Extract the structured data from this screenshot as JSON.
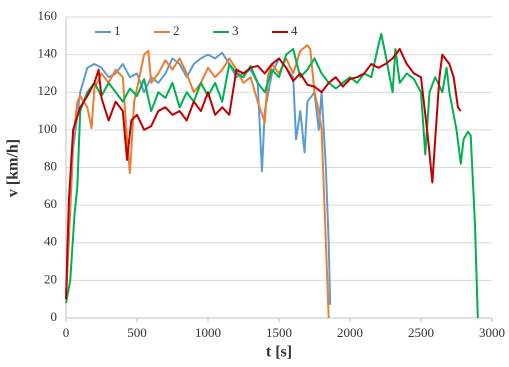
{
  "chart_data": {
    "type": "line",
    "x_label": "t [s]",
    "y_label": "v [km/h]",
    "xlim": [
      0,
      3000
    ],
    "xticks": [
      0,
      500,
      1000,
      1500,
      2000,
      2500,
      3000
    ],
    "ylim": [
      0,
      160
    ],
    "yticks": [
      0,
      20,
      40,
      60,
      80,
      100,
      120,
      140,
      160
    ],
    "grid": true,
    "legend": "top",
    "series": [
      {
        "name": "1",
        "color": "#5b9bd5",
        "x": [
          0,
          50,
          100,
          150,
          200,
          250,
          300,
          350,
          400,
          450,
          500,
          550,
          600,
          650,
          700,
          750,
          800,
          850,
          900,
          950,
          1000,
          1050,
          1100,
          1150,
          1200,
          1250,
          1300,
          1350,
          1380,
          1400,
          1450,
          1500,
          1550,
          1600,
          1620,
          1650,
          1680,
          1700,
          1750,
          1780,
          1800,
          1830,
          1850,
          1860
        ],
        "values": [
          10,
          90,
          120,
          133,
          135,
          133,
          128,
          130,
          135,
          128,
          130,
          120,
          128,
          125,
          130,
          138,
          135,
          128,
          135,
          138,
          140,
          138,
          141,
          135,
          128,
          130,
          132,
          125,
          78,
          110,
          130,
          138,
          133,
          128,
          95,
          110,
          88,
          115,
          120,
          100,
          120,
          80,
          40,
          7
        ]
      },
      {
        "name": "2",
        "color": "#ed7d31",
        "x": [
          0,
          50,
          80,
          100,
          150,
          180,
          200,
          250,
          300,
          350,
          400,
          430,
          450,
          480,
          500,
          550,
          580,
          600,
          650,
          700,
          750,
          800,
          850,
          900,
          950,
          1000,
          1050,
          1100,
          1150,
          1200,
          1250,
          1300,
          1350,
          1400,
          1420,
          1450,
          1500,
          1550,
          1600,
          1650,
          1700,
          1720,
          1750,
          1780,
          1800,
          1820,
          1840,
          1850
        ],
        "values": [
          10,
          95,
          115,
          118,
          112,
          101,
          122,
          130,
          125,
          132,
          128,
          95,
          77,
          115,
          122,
          140,
          142,
          125,
          130,
          137,
          132,
          138,
          130,
          120,
          125,
          133,
          128,
          132,
          138,
          132,
          125,
          128,
          115,
          104,
          128,
          135,
          130,
          138,
          130,
          142,
          145,
          143,
          120,
          110,
          100,
          60,
          20,
          0
        ]
      },
      {
        "name": "3",
        "color": "#00b050",
        "x": [
          0,
          30,
          60,
          80,
          100,
          150,
          200,
          250,
          300,
          350,
          400,
          450,
          500,
          550,
          600,
          650,
          700,
          750,
          800,
          850,
          900,
          950,
          1000,
          1050,
          1100,
          1150,
          1200,
          1250,
          1300,
          1350,
          1400,
          1450,
          1500,
          1550,
          1600,
          1650,
          1700,
          1750,
          1800,
          1850,
          1900,
          1950,
          2000,
          2050,
          2100,
          2150,
          2200,
          2220,
          2250,
          2300,
          2320,
          2350,
          2400,
          2450,
          2500,
          2530,
          2560,
          2600,
          2650,
          2680,
          2700,
          2750,
          2780,
          2800,
          2830,
          2850,
          2880,
          2900
        ],
        "values": [
          8,
          20,
          55,
          70,
          110,
          120,
          125,
          118,
          125,
          120,
          115,
          122,
          118,
          127,
          110,
          120,
          117,
          125,
          112,
          120,
          115,
          125,
          118,
          125,
          115,
          135,
          130,
          128,
          134,
          125,
          120,
          132,
          128,
          140,
          143,
          128,
          132,
          138,
          130,
          125,
          122,
          125,
          128,
          125,
          130,
          128,
          145,
          151,
          140,
          120,
          143,
          125,
          130,
          127,
          120,
          87,
          120,
          128,
          120,
          133,
          120,
          100,
          82,
          95,
          99,
          97,
          50,
          0
        ]
      },
      {
        "name": "4",
        "color": "#c00000",
        "x": [
          0,
          20,
          50,
          100,
          150,
          200,
          230,
          250,
          300,
          350,
          400,
          430,
          460,
          500,
          550,
          600,
          650,
          700,
          750,
          800,
          850,
          900,
          950,
          1000,
          1050,
          1100,
          1150,
          1200,
          1250,
          1300,
          1350,
          1400,
          1450,
          1500,
          1550,
          1600,
          1650,
          1700,
          1750,
          1800,
          1850,
          1900,
          1950,
          2000,
          2050,
          2100,
          2150,
          2200,
          2250,
          2300,
          2350,
          2400,
          2450,
          2500,
          2550,
          2580,
          2600,
          2630,
          2650,
          2700,
          2730,
          2760,
          2780
        ],
        "values": [
          10,
          62,
          100,
          112,
          118,
          125,
          132,
          117,
          105,
          115,
          110,
          84,
          105,
          108,
          100,
          102,
          110,
          112,
          108,
          110,
          105,
          115,
          110,
          120,
          108,
          112,
          108,
          132,
          130,
          133,
          134,
          130,
          135,
          138,
          133,
          126,
          130,
          124,
          123,
          120,
          125,
          128,
          123,
          127,
          128,
          130,
          135,
          133,
          135,
          138,
          143,
          135,
          130,
          128,
          95,
          72,
          95,
          128,
          140,
          135,
          128,
          112,
          110
        ]
      }
    ]
  }
}
